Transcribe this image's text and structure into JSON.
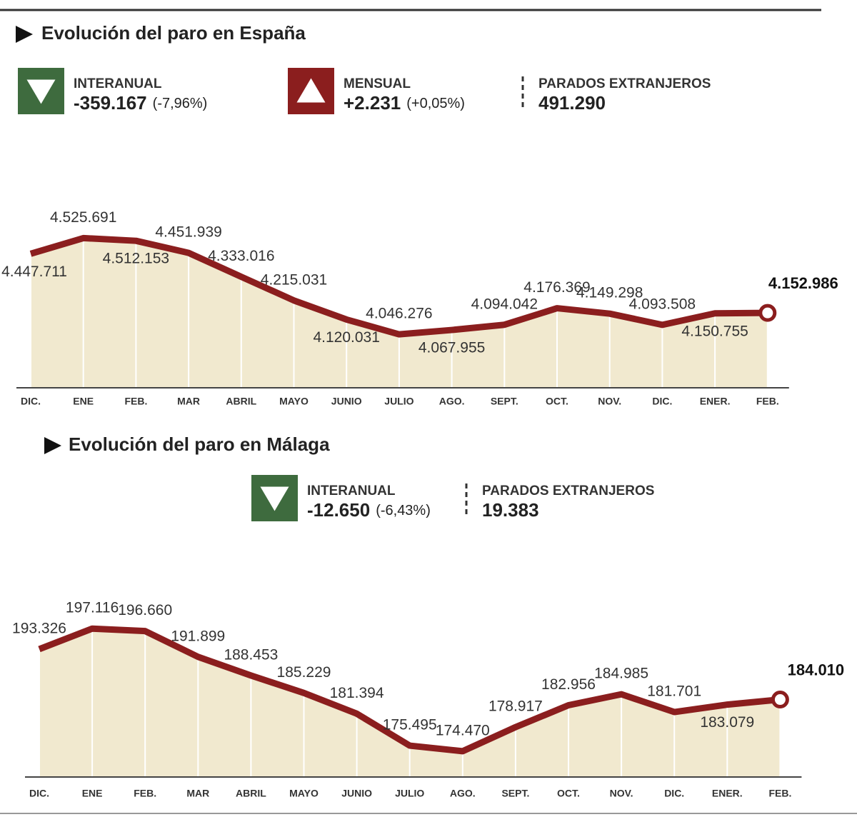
{
  "chart_data": [
    {
      "type": "area-line",
      "title": "Evolución del paro en España",
      "indicators": [
        {
          "label": "INTERANUAL",
          "value": "-359.167",
          "change": "(-7,96%)",
          "arrow": "down",
          "color": "#3e6b3e"
        },
        {
          "label": "MENSUAL",
          "value": "+2.231",
          "change": "(+0,05%)",
          "arrow": "up",
          "color": "#8b1e1e"
        },
        {
          "label": "PARADOS EXTRANJEROS",
          "value": "491.290"
        }
      ],
      "categories": [
        "DIC.",
        "ENE",
        "FEB.",
        "MAR",
        "ABRIL",
        "MAYO",
        "JUNIO",
        "JULIO",
        "AGO.",
        "SEPT.",
        "OCT.",
        "NOV.",
        "DIC.",
        "ENER.",
        "FEB."
      ],
      "values": [
        4447711,
        4525691,
        4512153,
        4451939,
        4333016,
        4215031,
        4120031,
        4046276,
        4067955,
        4094042,
        4176369,
        4149298,
        4093508,
        4150755,
        4152986
      ],
      "value_labels": [
        "4.447.711",
        "4.525.691",
        "4.512.153",
        "4.451.939",
        "4.333.016",
        "4.215.031",
        "4.120.031",
        "4.046.276",
        "4.067.955",
        "4.094.042",
        "4.176.369",
        "4.149.298",
        "4.093.508",
        "4.150.755",
        "4.152.986"
      ],
      "ylim": [
        3780000,
        4680000
      ],
      "color": "#8b1e1e",
      "fill": "#f1e9cf"
    },
    {
      "type": "area-line",
      "title": "Evolución del paro en Málaga",
      "indicators": [
        {
          "label": "INTERANUAL",
          "value": "-12.650",
          "change": "(-6,43%)",
          "arrow": "down",
          "color": "#3e6b3e"
        },
        {
          "label": "PARADOS EXTRANJEROS",
          "value": "19.383"
        }
      ],
      "categories": [
        "DIC.",
        "ENE",
        "FEB.",
        "MAR",
        "ABRIL",
        "MAYO",
        "JUNIO",
        "JULIO",
        "AGO.",
        "SEPT.",
        "OCT.",
        "NOV.",
        "DIC.",
        "ENER.",
        "FEB."
      ],
      "values": [
        193326,
        197116,
        196660,
        191899,
        188453,
        185229,
        181394,
        175495,
        174470,
        178917,
        182956,
        184985,
        181701,
        183079,
        184010
      ],
      "value_labels": [
        "193.326",
        "197.116",
        "196.660",
        "191.899",
        "188.453",
        "185.229",
        "181.394",
        "175.495",
        "174.470",
        "178.917",
        "182.956",
        "184.985",
        "181.701",
        "183.079",
        "184.010"
      ],
      "ylim": [
        169700,
        201100
      ],
      "color": "#8b1e1e",
      "fill": "#f1e9cf"
    }
  ]
}
